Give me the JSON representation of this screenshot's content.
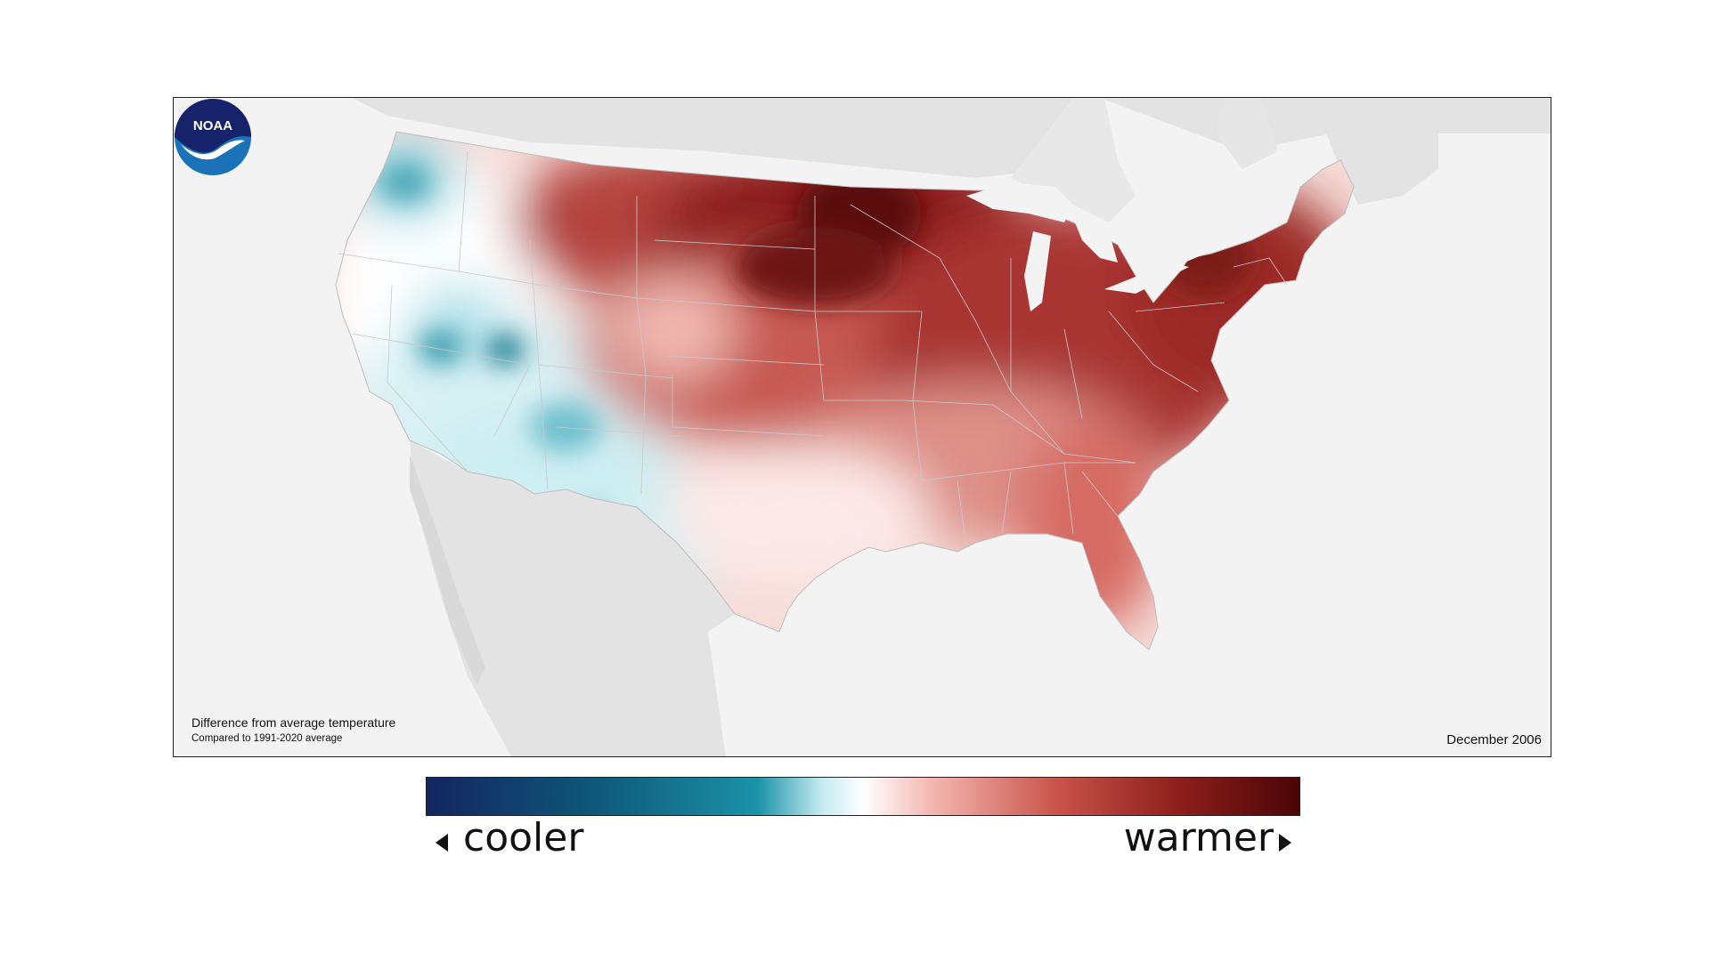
{
  "map": {
    "caption_title": "Difference from average temperature",
    "caption_subtitle": "Compared to 1991-2020 average",
    "date": "December 2006",
    "logo_text": "NOAA"
  },
  "legend": {
    "cooler_label": "cooler",
    "warmer_label": "warmer",
    "gradient_colors": [
      "#13255f",
      "#0e5a7a",
      "#1c93a8",
      "#bfe9ef",
      "#ffffff",
      "#f3b6b0",
      "#c9554c",
      "#8e1f1c",
      "#4a0507"
    ]
  },
  "colors": {
    "land_background": "#e3e3e3",
    "ocean_background": "#f3f3f3",
    "cool_anomaly": "#1c93a8",
    "warm_anomaly": "#8e1f1c",
    "noaa_blue": "#1a73b8",
    "noaa_navy": "#16236b"
  }
}
